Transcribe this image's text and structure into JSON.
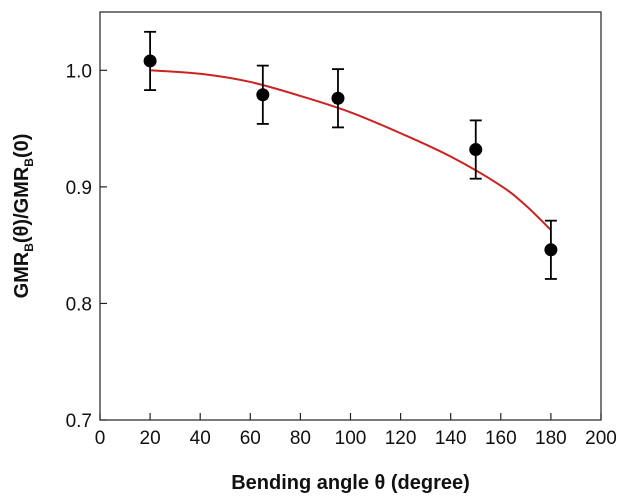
{
  "chart_data": {
    "type": "scatter",
    "xlabel": "Bending angle θ (degree)",
    "ylabel_parts": {
      "a": "GMR",
      "b": "B",
      "c": "(θ)/GMR",
      "d": "B",
      "e": "(0)"
    },
    "xlim": [
      0,
      200
    ],
    "ylim": [
      0.7,
      1.05
    ],
    "x_ticks": [
      0,
      20,
      40,
      60,
      80,
      100,
      120,
      140,
      160,
      180,
      200
    ],
    "y_ticks": [
      0.7,
      0.8,
      0.9,
      1.0
    ],
    "x_tick_labels": [
      "0",
      "20",
      "40",
      "60",
      "80",
      "100",
      "120",
      "140",
      "160",
      "180",
      "200"
    ],
    "y_tick_labels": [
      "0.7",
      "0.8",
      "0.9",
      "1.0"
    ],
    "grid": false,
    "series": [
      {
        "kind": "points_with_error_bars",
        "color": "#000000",
        "x": [
          20,
          65,
          95,
          150,
          180
        ],
        "y": [
          1.008,
          0.979,
          0.976,
          0.932,
          0.846
        ],
        "yerr": [
          0.025,
          0.025,
          0.025,
          0.025,
          0.025
        ]
      },
      {
        "kind": "fit_curve",
        "color": "#cc2222",
        "x": [
          20,
          40,
          60,
          80,
          100,
          120,
          140,
          160,
          170,
          180
        ],
        "y": [
          1.0,
          0.997,
          0.99,
          0.978,
          0.964,
          0.946,
          0.926,
          0.901,
          0.884,
          0.863
        ]
      }
    ]
  }
}
